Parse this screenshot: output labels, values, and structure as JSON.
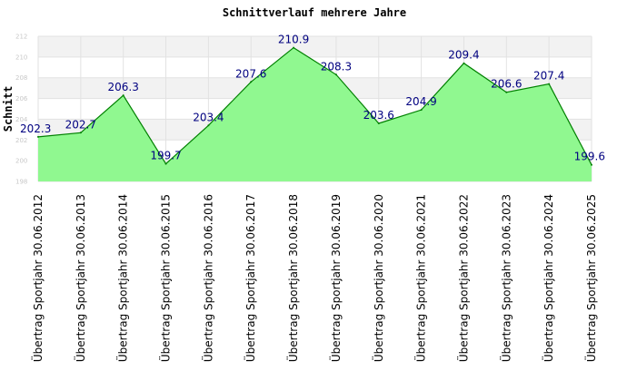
{
  "chart_data": {
    "type": "area",
    "title": "Schnittverlauf mehrere Jahre",
    "ylabel": "Schnitt",
    "xlabel": "",
    "categories": [
      "Übertrag Sportjahr 30.06.2012",
      "Übertrag Sportjahr 30.06.2013",
      "Übertrag Sportjahr 30.06.2014",
      "Übertrag Sportjahr 30.06.2015",
      "Übertrag Sportjahr 30.06.2016",
      "Übertrag Sportjahr 30.06.2017",
      "Übertrag Sportjahr 30.06.2018",
      "Übertrag Sportjahr 30.06.2019",
      "Übertrag Sportjahr 30.06.2020",
      "Übertrag Sportjahr 30.06.2021",
      "Übertrag Sportjahr 30.06.2022",
      "Übertrag Sportjahr 30.06.2023",
      "Übertrag Sportjahr 30.06.2024",
      "Übertrag Sportjahr 30.06.2025"
    ],
    "values": [
      202.3,
      202.7,
      206.3,
      199.7,
      203.4,
      207.6,
      210.9,
      208.3,
      203.6,
      204.9,
      209.4,
      206.6,
      207.4,
      199.6
    ],
    "data_labels": [
      "202.3",
      "202.7",
      "206.3",
      "199.7",
      "203.4",
      "207.6",
      "210.9",
      "208.3",
      "203.6",
      "204.9",
      "209.4",
      "206.6",
      "207.4",
      "199.6"
    ],
    "ylim": [
      198,
      212
    ],
    "yticks": [
      198,
      200,
      202,
      204,
      206,
      208,
      210,
      212
    ],
    "grid": true,
    "legend": "none",
    "colors": {
      "fill": "#90f890",
      "line": "#008000",
      "label": "#000080",
      "band": "#f2f2f2",
      "grid": "#e2e2e2",
      "tick": "#c8c8c8"
    }
  }
}
